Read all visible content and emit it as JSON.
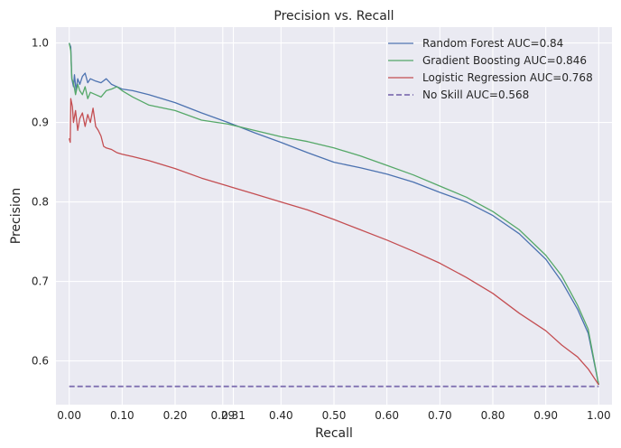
{
  "chart_data": {
    "type": "line",
    "title": "Precision vs. Recall",
    "xlabel": "Recall",
    "ylabel": "Precision",
    "xlim": [
      -0.025,
      1.025
    ],
    "ylim": [
      0.545,
      1.02
    ],
    "xticks": [
      {
        "value": 0.0,
        "label": "0.00"
      },
      {
        "value": 0.1,
        "label": "0.10"
      },
      {
        "value": 0.2,
        "label": "0.20"
      },
      {
        "value": 0.29,
        "label": "0.29"
      },
      {
        "value": 0.31,
        "label": "0.31"
      },
      {
        "value": 0.4,
        "label": "0.40"
      },
      {
        "value": 0.5,
        "label": "0.50"
      },
      {
        "value": 0.6,
        "label": "0.60"
      },
      {
        "value": 0.7,
        "label": "0.70"
      },
      {
        "value": 0.8,
        "label": "0.80"
      },
      {
        "value": 0.9,
        "label": "0.90"
      },
      {
        "value": 1.0,
        "label": "1.00"
      }
    ],
    "yticks": [
      {
        "value": 0.6,
        "label": "0.6"
      },
      {
        "value": 0.7,
        "label": "0.7"
      },
      {
        "value": 0.8,
        "label": "0.8"
      },
      {
        "value": 0.9,
        "label": "0.9"
      },
      {
        "value": 1.0,
        "label": "1.0"
      }
    ],
    "grid": true,
    "legend_position": "top-right",
    "series": [
      {
        "name": "Random Forest AUC=0.84",
        "color": "#4c72b0",
        "dash": false,
        "points": [
          [
            0.0,
            1.0
          ],
          [
            0.003,
            0.995
          ],
          [
            0.005,
            0.955
          ],
          [
            0.008,
            0.945
          ],
          [
            0.01,
            0.96
          ],
          [
            0.013,
            0.94
          ],
          [
            0.016,
            0.955
          ],
          [
            0.02,
            0.948
          ],
          [
            0.025,
            0.958
          ],
          [
            0.03,
            0.962
          ],
          [
            0.035,
            0.95
          ],
          [
            0.04,
            0.955
          ],
          [
            0.05,
            0.952
          ],
          [
            0.06,
            0.95
          ],
          [
            0.07,
            0.955
          ],
          [
            0.08,
            0.948
          ],
          [
            0.09,
            0.945
          ],
          [
            0.1,
            0.942
          ],
          [
            0.12,
            0.94
          ],
          [
            0.15,
            0.935
          ],
          [
            0.2,
            0.925
          ],
          [
            0.25,
            0.912
          ],
          [
            0.3,
            0.9
          ],
          [
            0.35,
            0.887
          ],
          [
            0.4,
            0.875
          ],
          [
            0.45,
            0.862
          ],
          [
            0.5,
            0.85
          ],
          [
            0.55,
            0.843
          ],
          [
            0.6,
            0.835
          ],
          [
            0.65,
            0.825
          ],
          [
            0.7,
            0.812
          ],
          [
            0.75,
            0.8
          ],
          [
            0.8,
            0.783
          ],
          [
            0.85,
            0.76
          ],
          [
            0.9,
            0.728
          ],
          [
            0.93,
            0.7
          ],
          [
            0.96,
            0.665
          ],
          [
            0.98,
            0.635
          ],
          [
            1.0,
            0.57
          ]
        ]
      },
      {
        "name": "Gradient Boosting AUC=0.846",
        "color": "#55a868",
        "dash": false,
        "points": [
          [
            0.0,
            1.0
          ],
          [
            0.003,
            0.99
          ],
          [
            0.005,
            0.955
          ],
          [
            0.008,
            0.95
          ],
          [
            0.012,
            0.935
          ],
          [
            0.016,
            0.948
          ],
          [
            0.02,
            0.94
          ],
          [
            0.025,
            0.935
          ],
          [
            0.03,
            0.945
          ],
          [
            0.035,
            0.93
          ],
          [
            0.04,
            0.938
          ],
          [
            0.05,
            0.935
          ],
          [
            0.06,
            0.932
          ],
          [
            0.07,
            0.94
          ],
          [
            0.08,
            0.942
          ],
          [
            0.09,
            0.945
          ],
          [
            0.1,
            0.94
          ],
          [
            0.12,
            0.932
          ],
          [
            0.15,
            0.922
          ],
          [
            0.2,
            0.915
          ],
          [
            0.25,
            0.903
          ],
          [
            0.3,
            0.898
          ],
          [
            0.35,
            0.89
          ],
          [
            0.4,
            0.882
          ],
          [
            0.45,
            0.876
          ],
          [
            0.5,
            0.868
          ],
          [
            0.55,
            0.858
          ],
          [
            0.6,
            0.846
          ],
          [
            0.65,
            0.834
          ],
          [
            0.7,
            0.82
          ],
          [
            0.75,
            0.806
          ],
          [
            0.8,
            0.788
          ],
          [
            0.85,
            0.765
          ],
          [
            0.9,
            0.733
          ],
          [
            0.93,
            0.707
          ],
          [
            0.96,
            0.67
          ],
          [
            0.98,
            0.64
          ],
          [
            1.0,
            0.57
          ]
        ]
      },
      {
        "name": "Logistic Regression AUC=0.768",
        "color": "#c44e52",
        "dash": false,
        "points": [
          [
            0.0,
            0.88
          ],
          [
            0.002,
            0.875
          ],
          [
            0.003,
            0.93
          ],
          [
            0.006,
            0.92
          ],
          [
            0.008,
            0.9
          ],
          [
            0.012,
            0.915
          ],
          [
            0.016,
            0.89
          ],
          [
            0.02,
            0.905
          ],
          [
            0.025,
            0.912
          ],
          [
            0.03,
            0.895
          ],
          [
            0.035,
            0.91
          ],
          [
            0.04,
            0.9
          ],
          [
            0.045,
            0.918
          ],
          [
            0.05,
            0.895
          ],
          [
            0.055,
            0.89
          ],
          [
            0.06,
            0.883
          ],
          [
            0.065,
            0.87
          ],
          [
            0.07,
            0.868
          ],
          [
            0.08,
            0.866
          ],
          [
            0.09,
            0.862
          ],
          [
            0.1,
            0.86
          ],
          [
            0.12,
            0.857
          ],
          [
            0.15,
            0.852
          ],
          [
            0.2,
            0.842
          ],
          [
            0.25,
            0.83
          ],
          [
            0.3,
            0.82
          ],
          [
            0.35,
            0.81
          ],
          [
            0.4,
            0.8
          ],
          [
            0.45,
            0.79
          ],
          [
            0.5,
            0.778
          ],
          [
            0.55,
            0.765
          ],
          [
            0.6,
            0.752
          ],
          [
            0.65,
            0.738
          ],
          [
            0.7,
            0.723
          ],
          [
            0.75,
            0.705
          ],
          [
            0.8,
            0.685
          ],
          [
            0.85,
            0.66
          ],
          [
            0.9,
            0.638
          ],
          [
            0.93,
            0.62
          ],
          [
            0.96,
            0.605
          ],
          [
            0.98,
            0.59
          ],
          [
            1.0,
            0.57
          ]
        ]
      },
      {
        "name": "No Skill AUC=0.568",
        "color": "#8172b2",
        "dash": true,
        "points": [
          [
            0.0,
            0.568
          ],
          [
            1.0,
            0.568
          ]
        ]
      }
    ]
  }
}
